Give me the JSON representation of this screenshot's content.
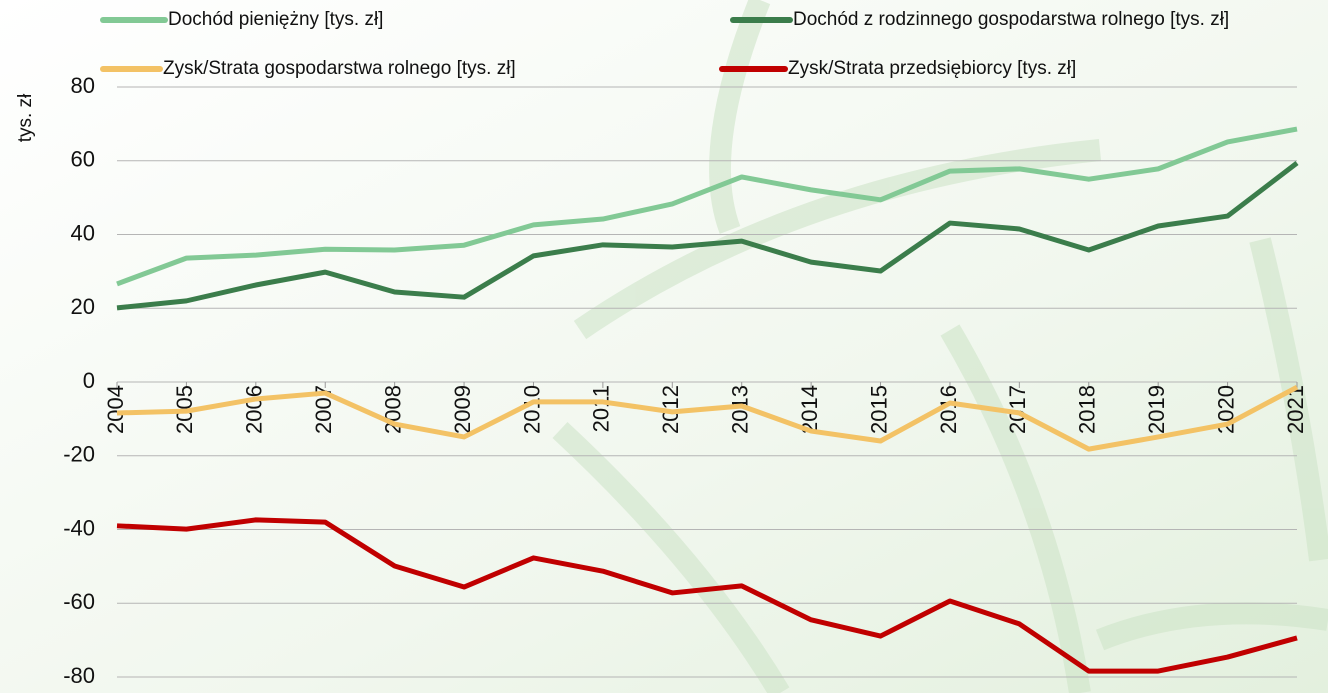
{
  "chart_data": {
    "type": "line",
    "y_label": "tys. zł",
    "categories": [
      "2004",
      "2005",
      "2006",
      "2007",
      "2008",
      "2009",
      "2010",
      "2011",
      "2012",
      "2013",
      "2014",
      "2015",
      "2016",
      "2017",
      "2018",
      "2019",
      "2020",
      "2021"
    ],
    "series": [
      {
        "name": "Dochód pieniężny [tys. zł]",
        "color": "#82c995",
        "values": [
          26.6,
          33.6,
          34.4,
          36,
          35.8,
          37.1,
          42.6,
          44.2,
          48.3,
          55.6,
          52.1,
          49.4,
          57.2,
          57.8,
          55,
          57.8,
          65.1,
          68.6
        ]
      },
      {
        "name": "Dochód z rodzinnego gospodarstwa rolnego [tys. zł]",
        "color": "#3b7d4b",
        "values": [
          20.1,
          22,
          26.3,
          29.8,
          24.4,
          23,
          34.2,
          37.2,
          36.6,
          38.2,
          32.5,
          30.1,
          43.1,
          41.5,
          35.8,
          42.3,
          45,
          59.4
        ]
      },
      {
        "name": "Zysk/Strata gospodarstwa rolnego [tys. zł]",
        "color": "#f3c265",
        "values": [
          -8.4,
          -7.9,
          -4.6,
          -3,
          -11.4,
          -14.9,
          -5.4,
          -5.4,
          -8.1,
          -6.5,
          -13.3,
          -16,
          -5.7,
          -8.4,
          -18.2,
          -14.9,
          -11.4,
          -1.4
        ]
      },
      {
        "name": "Zysk/Strata przedsiębiorcy [tys. zł]",
        "color": "#c00000",
        "values": [
          -39,
          -39.9,
          -37.4,
          -38,
          -49.9,
          -55.6,
          -47.7,
          -51.3,
          -57.2,
          -55.3,
          -64.5,
          -68.9,
          -59.4,
          -65.6,
          -78.4,
          -78.4,
          -74.6,
          -69.4
        ]
      }
    ],
    "ylim": [
      -80,
      80
    ],
    "yticks": [
      -80,
      -60,
      -40,
      -20,
      0,
      20,
      40,
      60,
      80
    ],
    "grid": true
  }
}
